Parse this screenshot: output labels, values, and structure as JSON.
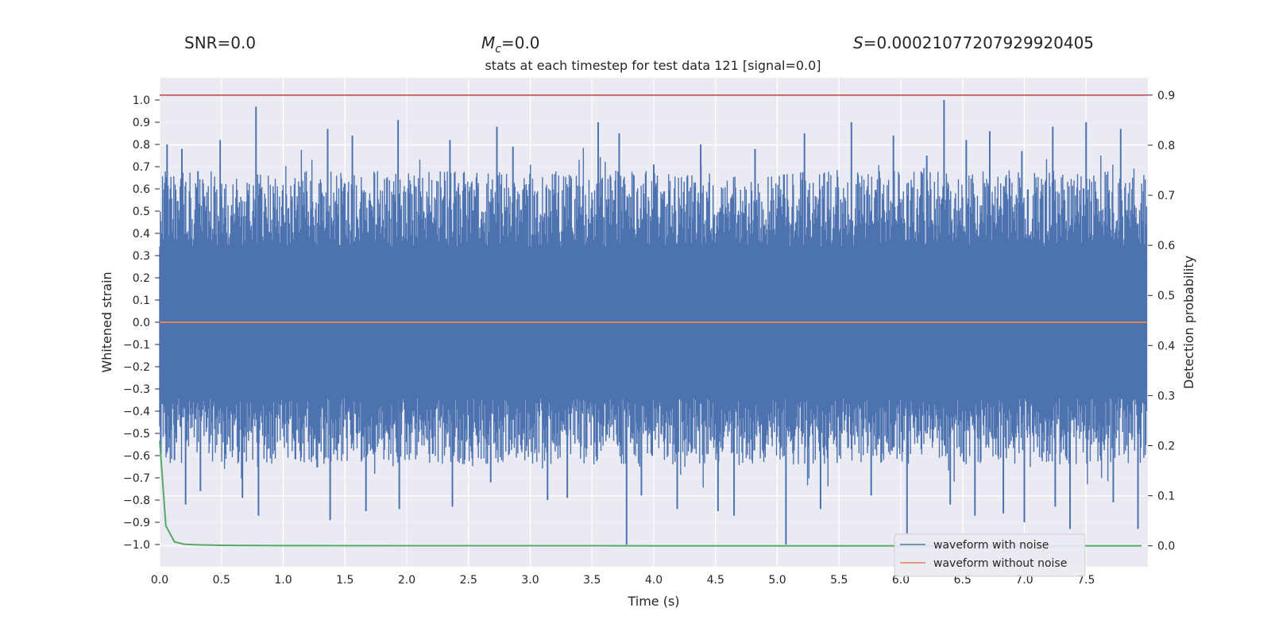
{
  "header": {
    "snr_text": "SNR=0.0",
    "mc_symbol": "M",
    "mc_sub": "c",
    "mc_value": "=0.0",
    "s_symbol": "S",
    "s_value": "=0.00021077207929920405"
  },
  "chart_data": {
    "type": "line",
    "title": "stats at each timestep for test data 121 [signal=0.0]",
    "xlabel": "Time (s)",
    "ylabel": "Whitened strain",
    "y2label": "Detection probability",
    "xlim": [
      0.0,
      8.0
    ],
    "ylim": [
      -1.1,
      1.1
    ],
    "y2lim": [
      -0.0417,
      0.9346
    ],
    "x_ticks": [
      "0.0",
      "0.5",
      "1.0",
      "1.5",
      "2.0",
      "2.5",
      "3.0",
      "3.5",
      "4.0",
      "4.5",
      "5.0",
      "5.5",
      "6.0",
      "6.5",
      "7.0",
      "7.5"
    ],
    "y_ticks": [
      "1.0",
      "0.9",
      "0.8",
      "0.7",
      "0.6",
      "0.5",
      "0.4",
      "0.3",
      "0.2",
      "0.1",
      "0.0",
      "−0.1",
      "−0.2",
      "−0.3",
      "−0.4",
      "−0.5",
      "−0.6",
      "−0.7",
      "−0.8",
      "−0.9",
      "−1.0"
    ],
    "y2_ticks": [
      "0.9",
      "0.8",
      "0.7",
      "0.6",
      "0.5",
      "0.4",
      "0.3",
      "0.2",
      "0.1",
      "0.0"
    ],
    "grid": true,
    "legend_position": "lower-right",
    "threshold": {
      "value": 0.9,
      "axis": "y2",
      "color": "#c44e52"
    },
    "series": [
      {
        "name": "waveform with noise",
        "color": "#4c72b0",
        "axis": "y",
        "kind": "noise",
        "peak_x": [
          0.06,
          0.18,
          0.31,
          0.49,
          0.78,
          1.36,
          1.56,
          1.93,
          2.35,
          2.73,
          2.86,
          3.55,
          3.72,
          4.0,
          4.38,
          4.82,
          5.22,
          5.6,
          5.94,
          6.21,
          6.35,
          6.53,
          6.72,
          6.98,
          7.23,
          7.5,
          7.78
        ],
        "peak_y": [
          0.8,
          0.78,
          0.68,
          0.82,
          0.97,
          0.87,
          0.84,
          0.91,
          0.82,
          0.88,
          0.79,
          0.9,
          0.85,
          0.71,
          0.8,
          0.78,
          0.85,
          0.9,
          0.84,
          0.75,
          1.0,
          0.82,
          0.86,
          0.77,
          0.88,
          0.9,
          0.87
        ],
        "trough_x": [
          0.12,
          0.21,
          0.33,
          0.67,
          0.8,
          1.38,
          1.67,
          1.94,
          2.37,
          2.68,
          3.14,
          3.3,
          3.78,
          3.9,
          4.19,
          4.52,
          4.65,
          5.07,
          5.35,
          5.76,
          6.05,
          6.4,
          6.6,
          6.83,
          7.0,
          7.25,
          7.37,
          7.72,
          7.92
        ],
        "trough_y": [
          -0.62,
          -0.82,
          -0.76,
          -0.79,
          -0.87,
          -0.89,
          -0.85,
          -0.84,
          -0.83,
          -0.72,
          -0.8,
          -0.79,
          -1.0,
          -0.78,
          -0.84,
          -0.85,
          -0.87,
          -1.0,
          -0.84,
          -0.78,
          -0.95,
          -0.82,
          -0.87,
          -0.86,
          -0.9,
          -0.83,
          -0.93,
          -0.81,
          -0.93
        ]
      },
      {
        "name": "waveform without noise",
        "color": "#dd8452",
        "axis": "y",
        "x": [
          0.0,
          7.99
        ],
        "y": [
          0.0,
          0.0
        ]
      },
      {
        "name": "",
        "color": "#55a868",
        "axis": "y2",
        "x": [
          0.0,
          0.05,
          0.12,
          0.2,
          0.3,
          0.5,
          1.0,
          2.0,
          4.0,
          6.0,
          7.95
        ],
        "y": [
          0.21,
          0.04,
          0.008,
          0.003,
          0.002,
          0.001,
          0.0005,
          0.0003,
          0.0002,
          0.0002,
          0.0002
        ]
      }
    ]
  }
}
